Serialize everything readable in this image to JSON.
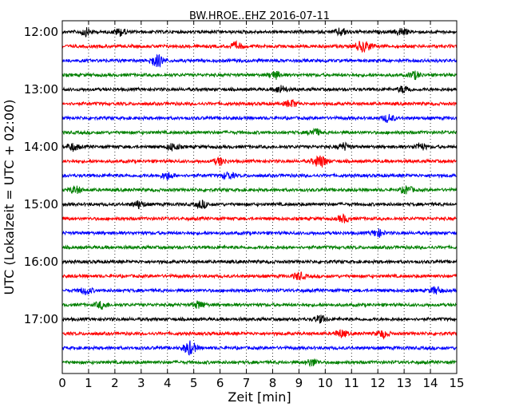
{
  "chart_data": {
    "type": "line",
    "title": "BW.HROE..EHZ 2016-07-11",
    "xlabel": "Zeit  [min]",
    "ylabel": "UTC (Lokalzeit = UTC + 02:00)",
    "xlim": [
      0,
      15
    ],
    "x_ticks": [
      "0",
      "1",
      "2",
      "3",
      "4",
      "5",
      "6",
      "7",
      "8",
      "9",
      "10",
      "11",
      "12",
      "13",
      "14",
      "15"
    ],
    "y_ticks": [
      "12:00",
      "13:00",
      "14:00",
      "15:00",
      "16:00",
      "17:00"
    ],
    "grid": "vertical dotted",
    "trace_interval_min": 15,
    "trace_colors": [
      "#000000",
      "#ff0000",
      "#0000ff",
      "#008000"
    ],
    "traces": [
      {
        "start": "12:00",
        "events_min": [
          0.9,
          2.2,
          10.6,
          12.9
        ]
      },
      {
        "start": "12:15",
        "events_min": [
          6.6,
          11.3,
          11.6
        ]
      },
      {
        "start": "12:30",
        "events_min": [
          3.5,
          3.7
        ]
      },
      {
        "start": "12:45",
        "events_min": [
          8.1,
          13.4
        ]
      },
      {
        "start": "13:00",
        "events_min": [
          8.3,
          13.0
        ]
      },
      {
        "start": "13:15",
        "events_min": [
          8.7
        ]
      },
      {
        "start": "13:30",
        "events_min": [
          12.4
        ]
      },
      {
        "start": "13:45",
        "events_min": [
          9.6
        ]
      },
      {
        "start": "14:00",
        "events_min": [
          0.4,
          4.2,
          10.7,
          13.6
        ]
      },
      {
        "start": "14:15",
        "events_min": [
          6.0,
          9.7,
          9.9
        ]
      },
      {
        "start": "14:30",
        "events_min": [
          6.3,
          4.0
        ]
      },
      {
        "start": "14:45",
        "events_min": [
          0.5,
          13.1
        ]
      },
      {
        "start": "15:00",
        "events_min": [
          2.9,
          5.3
        ]
      },
      {
        "start": "15:15",
        "events_min": [
          10.7
        ]
      },
      {
        "start": "15:30",
        "events_min": [
          12.0
        ]
      },
      {
        "start": "15:45",
        "events_min": []
      },
      {
        "start": "16:00",
        "events_min": []
      },
      {
        "start": "16:15",
        "events_min": [
          9.0
        ]
      },
      {
        "start": "16:30",
        "events_min": [
          0.9,
          14.2
        ]
      },
      {
        "start": "16:45",
        "events_min": [
          1.5,
          5.2
        ]
      },
      {
        "start": "17:00",
        "events_min": [
          9.8
        ]
      },
      {
        "start": "17:15",
        "events_min": [
          10.6,
          12.2
        ]
      },
      {
        "start": "17:30",
        "events_min": [
          4.8,
          4.9
        ]
      },
      {
        "start": "17:45",
        "events_min": [
          9.5
        ]
      }
    ]
  }
}
